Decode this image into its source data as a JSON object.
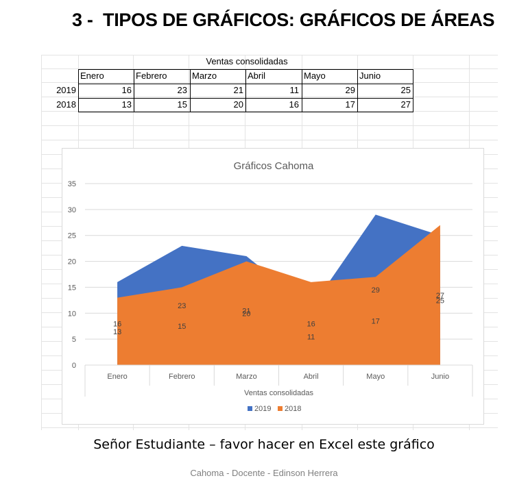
{
  "page": {
    "title": "3 -  TIPOS DE GRÁFICOS: GRÁFICOS DE ÁREAS",
    "caption": "Señor Estudiante – favor hacer en Excel este gráfico",
    "footer": "Cahoma - Docente - Edinson Herrera"
  },
  "table": {
    "title": "Ventas consolidadas",
    "columns": [
      "Enero",
      "Febrero",
      "Marzo",
      "Abril",
      "Mayo",
      "Junio"
    ],
    "rows": [
      {
        "label": "2019",
        "values": [
          16,
          23,
          21,
          11,
          29,
          25
        ]
      },
      {
        "label": "2018",
        "values": [
          13,
          15,
          20,
          16,
          17,
          27
        ]
      }
    ]
  },
  "chart_data": {
    "type": "area",
    "title": "Gráficos Cahoma",
    "categories": [
      "Enero",
      "Febrero",
      "Marzo",
      "Abril",
      "Mayo",
      "Junio"
    ],
    "xlabel": "Ventas consolidadas",
    "ylabel": "",
    "ylim": [
      0,
      35
    ],
    "yticks": [
      "0",
      "5",
      "10",
      "15",
      "20",
      "25",
      "30",
      "35"
    ],
    "grid": true,
    "legend_position": "bottom",
    "series": [
      {
        "name": "2019",
        "values": [
          16,
          23,
          21,
          11,
          29,
          25
        ],
        "color": "#4472C4"
      },
      {
        "name": "2018",
        "values": [
          13,
          15,
          20,
          16,
          17,
          27
        ],
        "color": "#ED7D31"
      }
    ]
  }
}
